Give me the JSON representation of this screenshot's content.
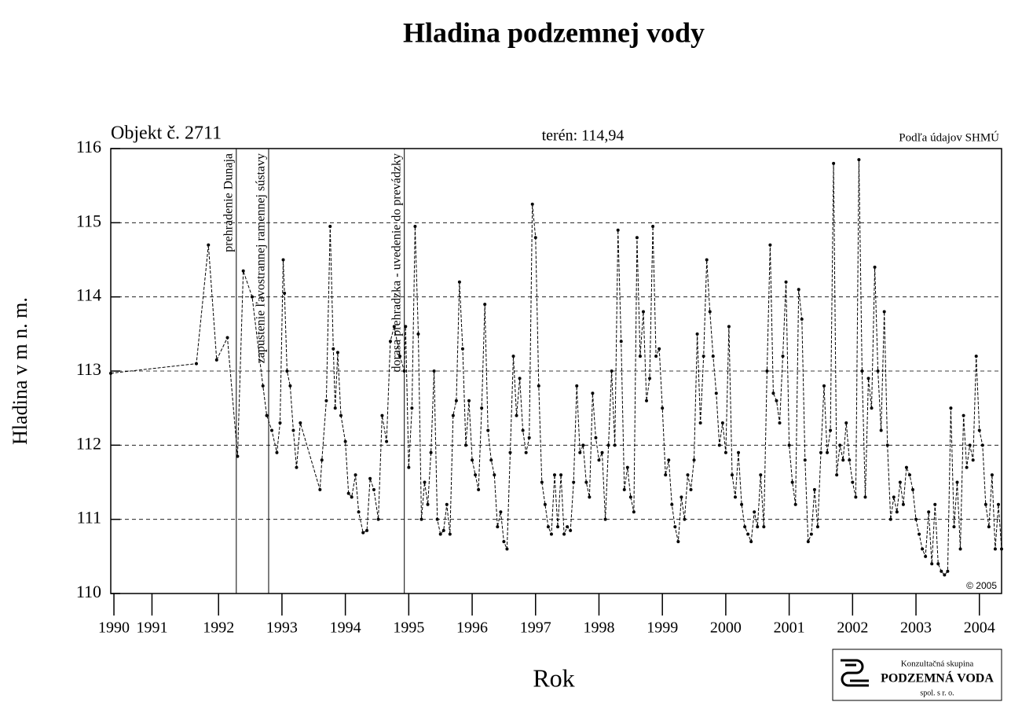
{
  "chart_data": {
    "type": "line",
    "title": "Hladina podzemnej vody",
    "object_label": "Objekt č. 2711",
    "terrain_label": "terén: 114,94",
    "source": "Podľa údajov SHMÚ",
    "copyright": "© 2005",
    "y_label": "Hladina v m n. m.",
    "x_label": "Rok",
    "logo": {
      "line1": "Konzultačná skupina",
      "line2": "PODZEMNÁ VODA",
      "line3": "spol. s r. o."
    },
    "color": "#000000",
    "grid": true,
    "xlim": [
      1990.8,
      2004.85
    ],
    "ylim": [
      110,
      116
    ],
    "yticks": [
      110,
      111,
      112,
      113,
      114,
      115,
      116
    ],
    "xticks": [
      {
        "value": 1990.85,
        "label": "1990"
      },
      {
        "value": 1991.45,
        "label": "1991"
      },
      {
        "value": 1992.5,
        "label": "1992"
      },
      {
        "value": 1993.5,
        "label": "1993"
      },
      {
        "value": 1994.5,
        "label": "1994"
      },
      {
        "value": 1995.5,
        "label": "1995"
      },
      {
        "value": 1996.5,
        "label": "1996"
      },
      {
        "value": 1997.5,
        "label": "1997"
      },
      {
        "value": 1998.5,
        "label": "1998"
      },
      {
        "value": 1999.5,
        "label": "1999"
      },
      {
        "value": 2000.5,
        "label": "2000"
      },
      {
        "value": 2001.5,
        "label": "2001"
      },
      {
        "value": 2002.5,
        "label": "2002"
      },
      {
        "value": 2003.5,
        "label": "2003"
      },
      {
        "value": 2004.5,
        "label": "2004"
      }
    ],
    "annotations": [
      {
        "x": 1992.78,
        "text": "prehradenie Dunaja"
      },
      {
        "x": 1993.29,
        "text": "zapustenie ľavostrannej ramennej sústavy"
      },
      {
        "x": 1995.43,
        "text": "dorasa prehradzka - uvedenie do prevádzky"
      }
    ],
    "x": [
      1990.8,
      1992.15,
      1992.34,
      1992.47,
      1992.64,
      1992.8,
      1992.89,
      1993.03,
      1993.2,
      1993.26,
      1993.34,
      1993.42,
      1993.47,
      1993.52,
      1993.54,
      1993.58,
      1993.63,
      1993.68,
      1993.73,
      1993.79,
      1994.1,
      1994.13,
      1994.2,
      1994.26,
      1994.31,
      1994.34,
      1994.38,
      1994.43,
      1994.5,
      1994.55,
      1994.6,
      1994.66,
      1994.71,
      1994.78,
      1994.84,
      1994.89,
      1994.95,
      1995.02,
      1995.08,
      1995.15,
      1995.21,
      1995.27,
      1995.36,
      1995.43,
      1995.45,
      1995.5,
      1995.55,
      1995.6,
      1995.65,
      1995.7,
      1995.75,
      1995.8,
      1995.85,
      1995.9,
      1995.95,
      1996,
      1996.05,
      1996.1,
      1996.15,
      1996.2,
      1996.25,
      1996.3,
      1996.35,
      1996.4,
      1996.45,
      1996.5,
      1996.55,
      1996.6,
      1996.65,
      1996.7,
      1996.75,
      1996.8,
      1996.85,
      1996.9,
      1996.95,
      1997,
      1997.05,
      1997.1,
      1997.15,
      1997.2,
      1997.25,
      1997.3,
      1997.35,
      1997.4,
      1997.45,
      1997.5,
      1997.55,
      1997.6,
      1997.65,
      1997.7,
      1997.75,
      1997.8,
      1997.85,
      1997.9,
      1997.95,
      1998,
      1998.05,
      1998.1,
      1998.15,
      1998.2,
      1998.25,
      1998.3,
      1998.35,
      1998.4,
      1998.45,
      1998.5,
      1998.55,
      1998.6,
      1998.65,
      1998.7,
      1998.75,
      1998.8,
      1998.85,
      1998.9,
      1998.95,
      1999,
      1999.05,
      1999.1,
      1999.15,
      1999.2,
      1999.25,
      1999.3,
      1999.35,
      1999.4,
      1999.45,
      1999.5,
      1999.55,
      1999.6,
      1999.65,
      1999.7,
      1999.75,
      1999.8,
      1999.85,
      1999.9,
      1999.95,
      2000,
      2000.05,
      2000.1,
      2000.15,
      2000.2,
      2000.25,
      2000.3,
      2000.35,
      2000.4,
      2000.45,
      2000.5,
      2000.55,
      2000.6,
      2000.65,
      2000.7,
      2000.75,
      2000.8,
      2000.85,
      2000.9,
      2000.95,
      2001,
      2001.05,
      2001.1,
      2001.15,
      2001.2,
      2001.25,
      2001.3,
      2001.35,
      2001.4,
      2001.45,
      2001.5,
      2001.55,
      2001.6,
      2001.65,
      2001.7,
      2001.75,
      2001.8,
      2001.85,
      2001.9,
      2001.95,
      2002,
      2002.05,
      2002.1,
      2002.15,
      2002.2,
      2002.25,
      2002.3,
      2002.35,
      2002.4,
      2002.45,
      2002.5,
      2002.55,
      2002.6,
      2002.65,
      2002.7,
      2002.75,
      2002.8,
      2002.85,
      2002.9,
      2002.95,
      2003,
      2003.05,
      2003.1,
      2003.15,
      2003.2,
      2003.25,
      2003.3,
      2003.35,
      2003.4,
      2003.45,
      2003.5,
      2003.55,
      2003.6,
      2003.65,
      2003.7,
      2003.75,
      2003.8,
      2003.85,
      2003.9,
      2003.95,
      2004,
      2004.05,
      2004.1,
      2004.15,
      2004.2,
      2004.25,
      2004.3,
      2004.35,
      2004.4,
      2004.45,
      2004.5,
      2004.55,
      2004.6,
      2004.65,
      2004.7,
      2004.75,
      2004.8,
      2004.85
    ],
    "values": [
      112.97,
      113.1,
      114.7,
      113.15,
      113.45,
      111.85,
      114.35,
      114.0,
      112.8,
      112.4,
      112.2,
      111.9,
      112.3,
      114.5,
      114.05,
      113.0,
      112.8,
      112.2,
      111.7,
      112.3,
      111.4,
      111.8,
      112.6,
      114.95,
      113.3,
      112.5,
      113.25,
      112.4,
      112.05,
      111.35,
      111.3,
      111.6,
      111.1,
      110.82,
      110.85,
      111.55,
      111.4,
      111.0,
      112.4,
      112.05,
      113.4,
      113.6,
      113.2,
      113.0,
      113.6,
      111.7,
      112.5,
      114.95,
      113.5,
      111.0,
      111.5,
      111.2,
      111.9,
      113.0,
      111.0,
      110.8,
      110.85,
      111.2,
      110.8,
      112.4,
      112.6,
      114.2,
      113.3,
      112.0,
      112.6,
      111.8,
      111.6,
      111.4,
      112.5,
      113.9,
      112.2,
      111.8,
      111.6,
      110.9,
      111.1,
      110.7,
      110.6,
      111.9,
      113.2,
      112.4,
      112.9,
      112.2,
      111.9,
      112.1,
      115.25,
      114.8,
      112.8,
      111.5,
      111.2,
      110.9,
      110.8,
      111.6,
      110.9,
      111.6,
      110.8,
      110.9,
      110.85,
      111.5,
      112.8,
      111.9,
      112.0,
      111.5,
      111.3,
      112.7,
      112.1,
      111.8,
      111.9,
      111.0,
      112.0,
      113.0,
      112.0,
      114.9,
      113.4,
      111.4,
      111.7,
      111.3,
      111.1,
      114.8,
      113.2,
      113.8,
      112.6,
      112.9,
      114.95,
      113.2,
      113.3,
      112.5,
      111.6,
      111.8,
      111.2,
      110.9,
      110.7,
      111.3,
      111.0,
      111.6,
      111.4,
      111.8,
      113.5,
      112.3,
      113.2,
      114.5,
      113.8,
      113.2,
      112.7,
      112.0,
      112.3,
      111.9,
      113.6,
      111.6,
      111.3,
      111.9,
      111.2,
      110.9,
      110.8,
      110.7,
      111.1,
      110.9,
      111.6,
      110.9,
      113.0,
      114.7,
      112.7,
      112.6,
      112.3,
      113.2,
      114.2,
      112.0,
      111.5,
      111.2,
      114.1,
      113.7,
      111.8,
      110.7,
      110.8,
      111.4,
      110.9,
      111.9,
      112.8,
      111.9,
      112.2,
      115.8,
      111.6,
      112.0,
      111.8,
      112.3,
      111.8,
      111.5,
      111.3,
      115.85,
      113.0,
      111.3,
      112.9,
      112.5,
      114.4,
      113.0,
      112.2,
      113.8,
      112.0,
      111.0,
      111.3,
      111.1,
      111.5,
      111.2,
      111.7,
      111.6,
      111.4,
      111.0,
      110.8,
      110.6,
      110.5,
      111.1,
      110.4,
      111.2,
      110.4,
      110.3,
      110.25,
      110.3,
      112.5,
      110.9,
      111.5,
      110.6,
      112.4,
      111.7,
      112.0,
      111.8,
      113.2,
      112.2,
      112.0,
      111.2,
      110.9,
      111.6,
      110.6,
      111.2,
      110.6
    ]
  }
}
